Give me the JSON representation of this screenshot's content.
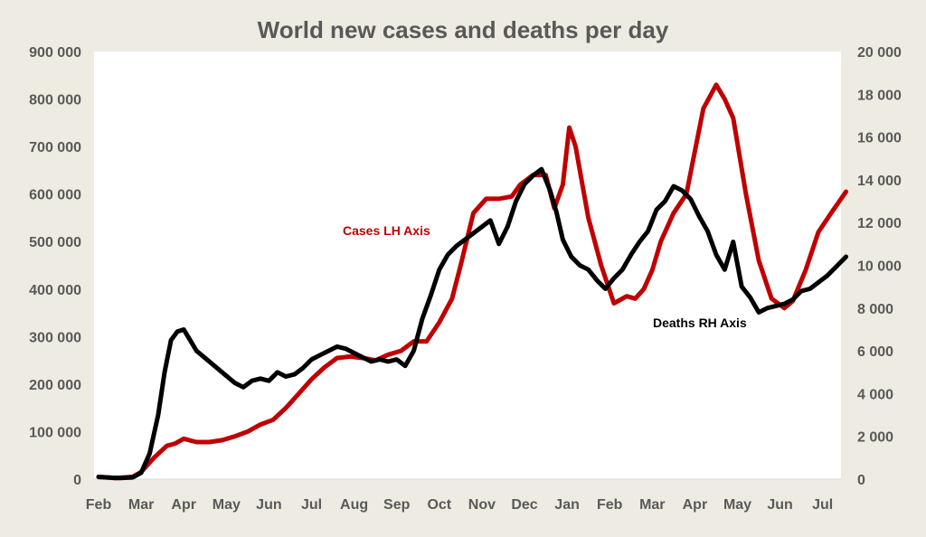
{
  "chart_data": {
    "type": "line",
    "title": "World new cases and deaths per day",
    "x_ticks": [
      "Feb",
      "Mar",
      "Apr",
      "May",
      "Jun",
      "Jul",
      "Aug",
      "Sep",
      "Oct",
      "Nov",
      "Dec",
      "Jan",
      "Feb",
      "Mar",
      "Apr",
      "May",
      "Jun",
      "Jul"
    ],
    "y_left": {
      "lim": [
        0,
        900000
      ],
      "ticks": [
        "0",
        "100 000",
        "200 000",
        "300 000",
        "400 000",
        "500 000",
        "600 000",
        "700 000",
        "800 000",
        "900 000"
      ]
    },
    "y_right": {
      "lim": [
        0,
        20000
      ],
      "ticks": [
        "0",
        "2 000",
        "4 000",
        "6 000",
        "8 000",
        "10 000",
        "12 000",
        "14 000",
        "16 000",
        "18 000",
        "20 000"
      ]
    },
    "grid": false,
    "series": [
      {
        "name": "Cases LH Axis",
        "axis": "left",
        "color": "#c00000",
        "x": [
          0,
          0.4,
          0.8,
          1.0,
          1.3,
          1.6,
          1.8,
          2.0,
          2.3,
          2.6,
          2.9,
          3.2,
          3.5,
          3.8,
          4.1,
          4.4,
          4.7,
          5.0,
          5.3,
          5.6,
          5.9,
          6.2,
          6.5,
          6.8,
          7.1,
          7.4,
          7.7,
          8.0,
          8.3,
          8.5,
          8.8,
          9.1,
          9.4,
          9.7,
          9.9,
          10.2,
          10.5,
          10.7,
          10.9,
          11.05,
          11.2,
          11.5,
          11.8,
          12.1,
          12.4,
          12.6,
          12.8,
          13.0,
          13.2,
          13.5,
          13.8,
          14.0,
          14.2,
          14.5,
          14.7,
          14.9,
          15.2,
          15.5,
          15.8,
          16.1,
          16.3,
          16.6,
          16.9,
          17.2,
          17.55
        ],
        "values": [
          5000,
          2000,
          5000,
          15000,
          45000,
          70000,
          75000,
          85000,
          78000,
          78000,
          82000,
          90000,
          100000,
          115000,
          125000,
          150000,
          180000,
          210000,
          235000,
          255000,
          258000,
          255000,
          250000,
          262000,
          270000,
          290000,
          290000,
          330000,
          380000,
          450000,
          560000,
          590000,
          590000,
          595000,
          620000,
          640000,
          640000,
          570000,
          620000,
          740000,
          700000,
          550000,
          450000,
          370000,
          385000,
          380000,
          400000,
          440000,
          500000,
          560000,
          600000,
          690000,
          780000,
          830000,
          800000,
          760000,
          600000,
          460000,
          380000,
          360000,
          375000,
          440000,
          520000,
          560000,
          605000
        ]
      },
      {
        "name": "Deaths RH Axis",
        "axis": "right",
        "color": "#000000",
        "x": [
          0,
          0.5,
          0.8,
          1.0,
          1.2,
          1.4,
          1.55,
          1.7,
          1.85,
          2.0,
          2.15,
          2.3,
          2.6,
          2.9,
          3.2,
          3.4,
          3.6,
          3.8,
          4.0,
          4.2,
          4.4,
          4.6,
          4.8,
          5.0,
          5.2,
          5.4,
          5.6,
          5.8,
          6.0,
          6.2,
          6.4,
          6.6,
          6.8,
          7.0,
          7.2,
          7.4,
          7.6,
          7.8,
          8.0,
          8.2,
          8.4,
          8.6,
          8.8,
          9.0,
          9.2,
          9.4,
          9.6,
          9.8,
          10.0,
          10.2,
          10.4,
          10.6,
          10.75,
          10.9,
          11.1,
          11.3,
          11.5,
          11.7,
          11.9,
          12.1,
          12.3,
          12.5,
          12.7,
          12.9,
          13.1,
          13.3,
          13.5,
          13.7,
          13.9,
          14.1,
          14.3,
          14.5,
          14.7,
          14.9,
          15.1,
          15.3,
          15.5,
          15.7,
          15.9,
          16.1,
          16.3,
          16.5,
          16.7,
          16.9,
          17.1,
          17.3,
          17.55
        ],
        "values": [
          100,
          50,
          80,
          300,
          1200,
          3000,
          5000,
          6500,
          6900,
          7000,
          6500,
          6000,
          5500,
          5000,
          4500,
          4300,
          4600,
          4700,
          4600,
          5000,
          4800,
          4900,
          5200,
          5600,
          5800,
          6000,
          6200,
          6100,
          5900,
          5700,
          5500,
          5600,
          5500,
          5600,
          5300,
          6000,
          7500,
          8600,
          9800,
          10500,
          10900,
          11200,
          11500,
          11800,
          12100,
          11000,
          11800,
          13000,
          13800,
          14200,
          14500,
          13500,
          12500,
          11200,
          10400,
          10000,
          9800,
          9300,
          8900,
          9400,
          9800,
          10500,
          11100,
          11600,
          12600,
          13000,
          13700,
          13500,
          13100,
          12300,
          11600,
          10500,
          9800,
          11100,
          9000,
          8500,
          7800,
          8000,
          8100,
          8200,
          8400,
          8800,
          8900,
          9200,
          9500,
          9900,
          10400
        ]
      }
    ],
    "annotations": [
      {
        "text": "Cases LH Axis",
        "color": "#c00000"
      },
      {
        "text": "Deaths RH Axis",
        "color": "#000000"
      }
    ]
  }
}
